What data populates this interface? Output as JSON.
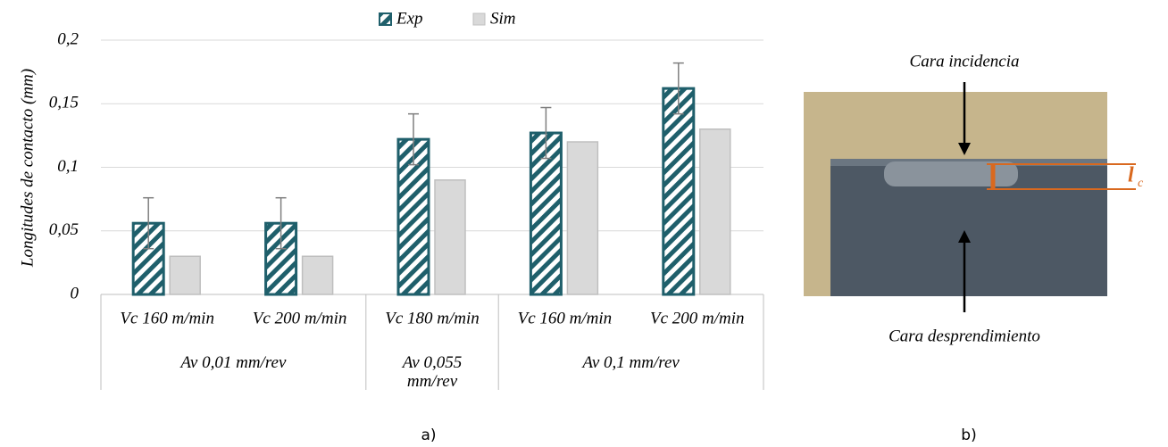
{
  "chart_data": {
    "type": "bar",
    "y_label": "Longitudes de contacto (mm)",
    "categories": [
      "Vc 160 m/min",
      "Vc 200 m/min",
      "Vc 180 m/min",
      "Vc 160 m/min",
      "Vc 200 m/min"
    ],
    "groups": [
      {
        "label": "Av 0,01 mm/rev",
        "size": 2
      },
      {
        "label": "Av 0,055 mm/rev",
        "size": 1
      },
      {
        "label": "Av 0,1 mm/rev",
        "size": 2
      }
    ],
    "series": [
      {
        "name": "Exp",
        "color": "#1f5f6b",
        "values": [
          0.056,
          0.056,
          0.122,
          0.127,
          0.162
        ],
        "errors": [
          0.02,
          0.02,
          0.02,
          0.02,
          0.02
        ]
      },
      {
        "name": "Sim",
        "color": "#d9d9d9",
        "values": [
          0.03,
          0.03,
          0.09,
          0.12,
          0.13
        ]
      }
    ],
    "ylim": [
      0,
      0.2
    ],
    "yticks": [
      0,
      {
        "value": 0.05,
        "label": "0,05"
      },
      {
        "value": 0.1,
        "label": "0,1"
      },
      {
        "value": 0.15,
        "label": "0,15"
      },
      {
        "value": 0.2,
        "label": "0,2"
      }
    ],
    "grid": true
  },
  "panel_label": "a)",
  "photo": {
    "label_top": "Cara incidencia",
    "label_bottom": "Cara desprendimiento",
    "symbol": "l",
    "subscript": "c",
    "panel_label": "b)"
  }
}
